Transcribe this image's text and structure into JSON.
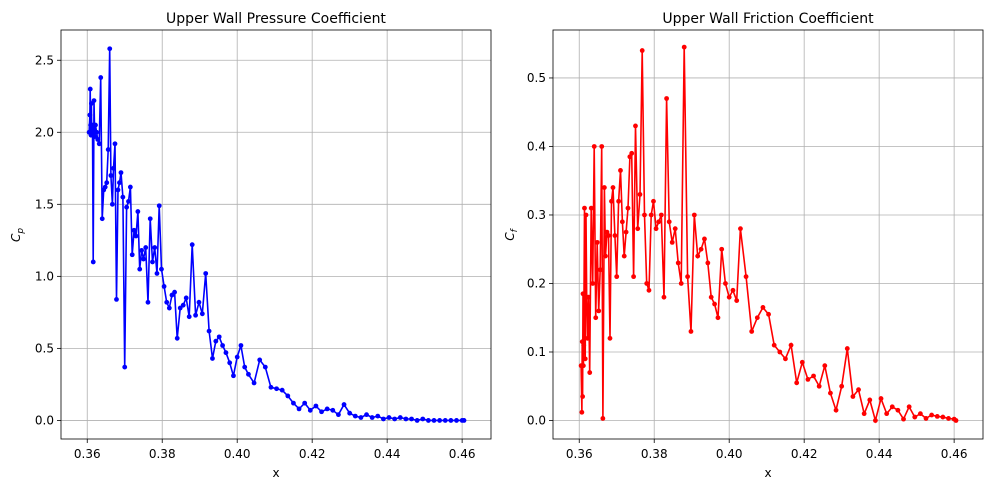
{
  "chart_data": [
    {
      "type": "line",
      "title": "Upper Wall Pressure Coefficient",
      "xlabel": "x",
      "ylabel_base": "C",
      "ylabel_sub": "p",
      "xlim": [
        0.353,
        0.4677
      ],
      "ylim": [
        -0.129,
        2.71
      ],
      "xticks": [
        0.36,
        0.38,
        0.4,
        0.42,
        0.44,
        0.46
      ],
      "xtick_labels": [
        "0.36",
        "0.38",
        "0.40",
        "0.42",
        "0.44",
        "0.46"
      ],
      "yticks": [
        0.0,
        0.5,
        1.0,
        1.5,
        2.0,
        2.5
      ],
      "ytick_labels": [
        "0.0",
        "0.5",
        "1.0",
        "1.5",
        "2.0",
        "2.5"
      ],
      "grid": true,
      "color": "#0000ff",
      "x": [
        0.3605,
        0.3607,
        0.3608,
        0.3609,
        0.361,
        0.3611,
        0.3612,
        0.3614,
        0.3616,
        0.3618,
        0.362,
        0.3622,
        0.3625,
        0.3628,
        0.3632,
        0.3636,
        0.364,
        0.3644,
        0.3648,
        0.3652,
        0.3656,
        0.366,
        0.3663,
        0.3667,
        0.367,
        0.3674,
        0.3678,
        0.3682,
        0.3686,
        0.369,
        0.3695,
        0.37,
        0.3705,
        0.371,
        0.3715,
        0.372,
        0.3725,
        0.373,
        0.3735,
        0.374,
        0.3745,
        0.375,
        0.3756,
        0.3762,
        0.3768,
        0.3774,
        0.378,
        0.3786,
        0.3792,
        0.3798,
        0.3805,
        0.3812,
        0.3819,
        0.3826,
        0.3833,
        0.384,
        0.3848,
        0.3856,
        0.3864,
        0.3872,
        0.388,
        0.3889,
        0.3898,
        0.3907,
        0.3916,
        0.3925,
        0.3934,
        0.3943,
        0.3952,
        0.3961,
        0.397,
        0.398,
        0.399,
        0.4,
        0.401,
        0.402,
        0.403,
        0.4045,
        0.406,
        0.4075,
        0.409,
        0.4105,
        0.412,
        0.4135,
        0.415,
        0.4165,
        0.418,
        0.4195,
        0.421,
        0.4225,
        0.424,
        0.4255,
        0.427,
        0.4285,
        0.43,
        0.4315,
        0.433,
        0.4345,
        0.436,
        0.4375,
        0.439,
        0.4405,
        0.442,
        0.4435,
        0.445,
        0.4465,
        0.448,
        0.4495,
        0.451,
        0.4525,
        0.454,
        0.4555,
        0.457,
        0.4585,
        0.46,
        0.4605
      ],
      "y": [
        2.0,
        2.12,
        2.3,
        2.05,
        1.98,
        2.2,
        2.0,
        2.05,
        1.1,
        2.22,
        1.97,
        2.05,
        2.0,
        1.95,
        1.92,
        2.38,
        1.4,
        1.6,
        1.62,
        1.65,
        1.88,
        2.58,
        1.7,
        1.5,
        1.75,
        1.92,
        0.84,
        1.6,
        1.65,
        1.72,
        1.55,
        0.37,
        1.48,
        1.52,
        1.62,
        1.15,
        1.32,
        1.28,
        1.45,
        1.05,
        1.18,
        1.12,
        1.2,
        0.82,
        1.4,
        1.1,
        1.2,
        1.02,
        1.49,
        1.05,
        0.93,
        0.82,
        0.78,
        0.87,
        0.89,
        0.57,
        0.78,
        0.8,
        0.85,
        0.72,
        1.22,
        0.73,
        0.82,
        0.74,
        1.02,
        0.62,
        0.43,
        0.55,
        0.58,
        0.52,
        0.47,
        0.4,
        0.31,
        0.44,
        0.52,
        0.37,
        0.32,
        0.26,
        0.42,
        0.37,
        0.23,
        0.22,
        0.21,
        0.17,
        0.12,
        0.08,
        0.12,
        0.07,
        0.1,
        0.06,
        0.08,
        0.07,
        0.04,
        0.11,
        0.05,
        0.03,
        0.02,
        0.04,
        0.02,
        0.03,
        0.01,
        0.02,
        0.01,
        0.02,
        0.01,
        0.01,
        0.0,
        0.01,
        0.0,
        0.0,
        0.0,
        0.0,
        0.0,
        0.0,
        0.0,
        0.0
      ]
    },
    {
      "type": "line",
      "title": "Upper Wall Friction Coefficient",
      "xlabel": "x",
      "ylabel_base": "C",
      "ylabel_sub": "f",
      "xlim": [
        0.353,
        0.4677
      ],
      "ylim": [
        -0.027,
        0.57
      ],
      "xticks": [
        0.36,
        0.38,
        0.4,
        0.42,
        0.44,
        0.46
      ],
      "xtick_labels": [
        "0.36",
        "0.38",
        "0.40",
        "0.42",
        "0.44",
        "0.46"
      ],
      "yticks": [
        0.0,
        0.1,
        0.2,
        0.3,
        0.4,
        0.5
      ],
      "ytick_labels": [
        "0.0",
        "0.1",
        "0.2",
        "0.3",
        "0.4",
        "0.5"
      ],
      "grid": true,
      "color": "#ff0000",
      "x": [
        0.3605,
        0.3607,
        0.3608,
        0.3609,
        0.361,
        0.3611,
        0.3612,
        0.3614,
        0.3616,
        0.3618,
        0.362,
        0.3622,
        0.3625,
        0.3628,
        0.3632,
        0.3636,
        0.364,
        0.3644,
        0.3648,
        0.3652,
        0.3656,
        0.366,
        0.3663,
        0.3667,
        0.367,
        0.3674,
        0.3678,
        0.3682,
        0.3686,
        0.369,
        0.3695,
        0.37,
        0.3705,
        0.371,
        0.3715,
        0.372,
        0.3725,
        0.373,
        0.3735,
        0.374,
        0.3745,
        0.375,
        0.3756,
        0.3762,
        0.3768,
        0.3774,
        0.378,
        0.3786,
        0.3792,
        0.3798,
        0.3805,
        0.3812,
        0.3819,
        0.3826,
        0.3833,
        0.384,
        0.3848,
        0.3856,
        0.3864,
        0.3872,
        0.388,
        0.3889,
        0.3898,
        0.3907,
        0.3916,
        0.3925,
        0.3934,
        0.3943,
        0.3952,
        0.3961,
        0.397,
        0.398,
        0.399,
        0.4,
        0.401,
        0.402,
        0.403,
        0.4045,
        0.406,
        0.4075,
        0.409,
        0.4105,
        0.412,
        0.4135,
        0.415,
        0.4165,
        0.418,
        0.4195,
        0.421,
        0.4225,
        0.424,
        0.4255,
        0.427,
        0.4285,
        0.43,
        0.4315,
        0.433,
        0.4345,
        0.436,
        0.4375,
        0.439,
        0.4405,
        0.442,
        0.4435,
        0.445,
        0.4465,
        0.448,
        0.4495,
        0.451,
        0.4525,
        0.454,
        0.4555,
        0.457,
        0.4585,
        0.46,
        0.4605
      ],
      "y": [
        0.08,
        0.012,
        0.115,
        0.035,
        0.185,
        0.08,
        0.11,
        0.31,
        0.09,
        0.3,
        0.18,
        0.12,
        0.18,
        0.07,
        0.31,
        0.2,
        0.4,
        0.15,
        0.26,
        0.16,
        0.22,
        0.4,
        0.003,
        0.34,
        0.24,
        0.275,
        0.27,
        0.12,
        0.32,
        0.34,
        0.27,
        0.21,
        0.32,
        0.365,
        0.29,
        0.24,
        0.275,
        0.31,
        0.385,
        0.39,
        0.21,
        0.43,
        0.28,
        0.33,
        0.54,
        0.3,
        0.2,
        0.19,
        0.3,
        0.32,
        0.28,
        0.29,
        0.3,
        0.18,
        0.47,
        0.29,
        0.26,
        0.28,
        0.23,
        0.2,
        0.545,
        0.21,
        0.13,
        0.3,
        0.24,
        0.25,
        0.265,
        0.23,
        0.18,
        0.17,
        0.15,
        0.25,
        0.2,
        0.18,
        0.19,
        0.175,
        0.28,
        0.21,
        0.13,
        0.15,
        0.165,
        0.155,
        0.11,
        0.1,
        0.09,
        0.11,
        0.055,
        0.085,
        0.06,
        0.065,
        0.05,
        0.08,
        0.04,
        0.015,
        0.05,
        0.105,
        0.035,
        0.045,
        0.01,
        0.03,
        0.0,
        0.032,
        0.01,
        0.02,
        0.015,
        0.002,
        0.02,
        0.005,
        0.01,
        0.003,
        0.008,
        0.006,
        0.005,
        0.003,
        0.002,
        0.0
      ]
    }
  ]
}
